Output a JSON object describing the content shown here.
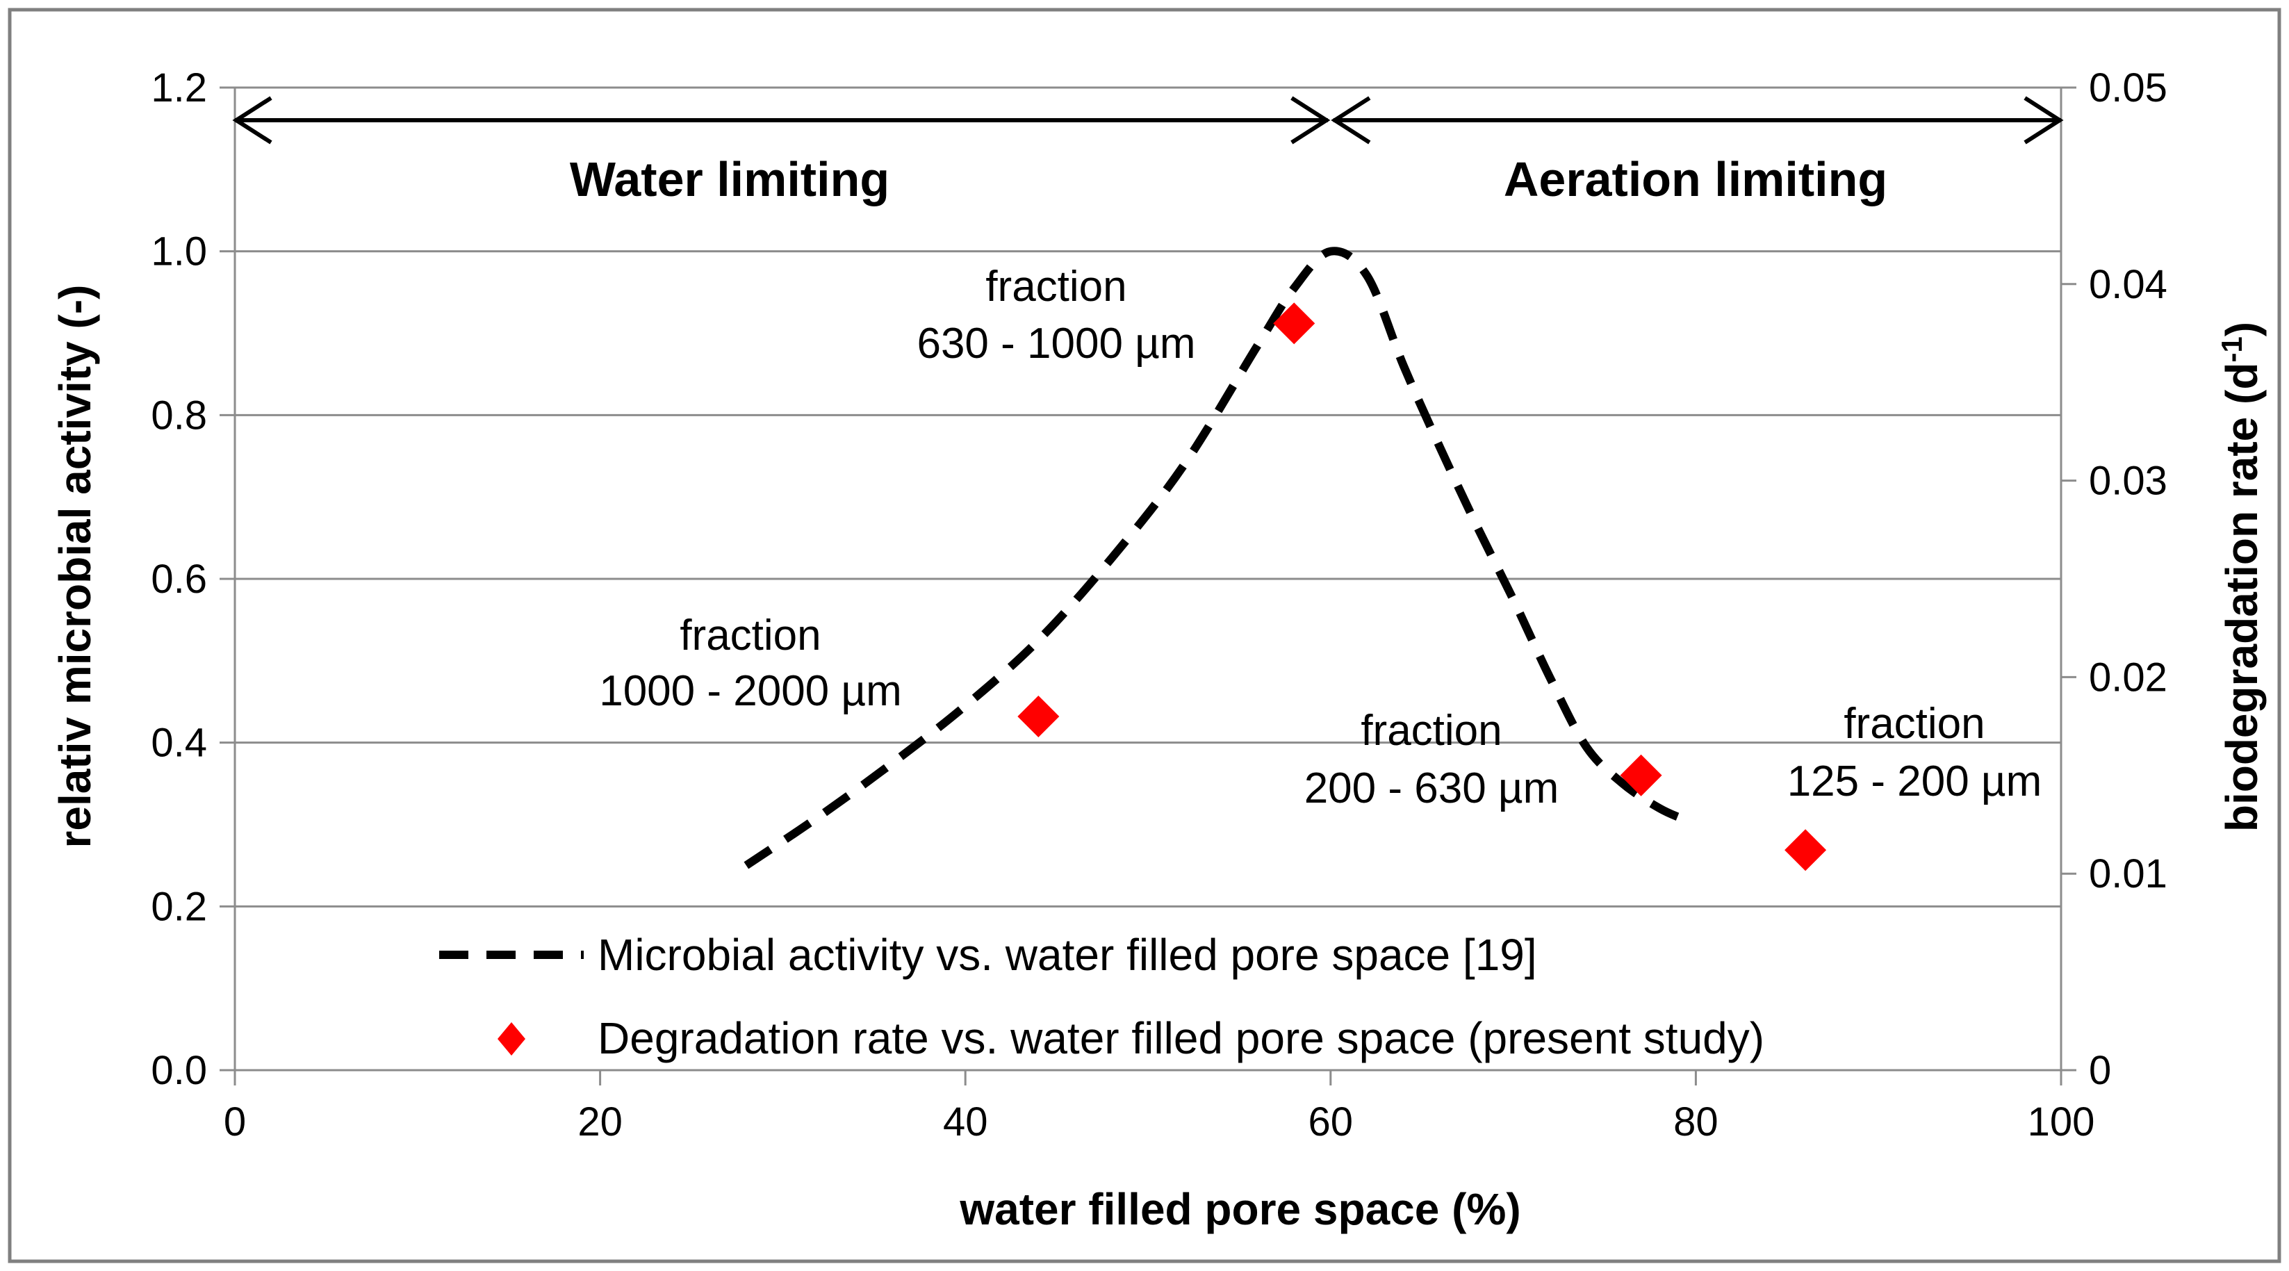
{
  "chart_data": {
    "type": "line",
    "title": "",
    "xlabel": "water filled pore space (%)",
    "ylabel": "relativ microbial activity (-)",
    "y2label_main": "biodegradation rate (d",
    "y2label_sup": "-1",
    "y2label_close": ")",
    "xlim": [
      0,
      100
    ],
    "ylim": [
      0,
      1.2
    ],
    "y2lim": [
      0,
      0.05
    ],
    "x_ticks": [
      "0",
      "20",
      "40",
      "60",
      "80",
      "100"
    ],
    "y_ticks": [
      "0.0",
      "0.2",
      "0.4",
      "0.6",
      "0.8",
      "1.0",
      "1.2"
    ],
    "y2_ticks": [
      "0",
      "0.01",
      "0.02",
      "0.03",
      "0.04",
      "0.05"
    ],
    "grid": true,
    "legend_position": "bottom-center",
    "series": [
      {
        "name": "Microbial activity vs. water filled pore space [19]",
        "style": "dashed",
        "color": "#000000",
        "axis": "left",
        "x": [
          28,
          32,
          36,
          40,
          44,
          48,
          52,
          56,
          58,
          60,
          62,
          64,
          66,
          68,
          70,
          72,
          74,
          76,
          78,
          79.5
        ],
        "y": [
          0.25,
          0.31,
          0.375,
          0.445,
          0.525,
          0.625,
          0.74,
          0.885,
          0.955,
          1.0,
          0.97,
          0.86,
          0.76,
          0.665,
          0.575,
          0.48,
          0.395,
          0.35,
          0.32,
          0.305
        ]
      },
      {
        "name": "Degradation rate vs. water filled pore space (present study)",
        "style": "marker-diamond",
        "color": "#ff0000",
        "axis": "right",
        "x": [
          44,
          58,
          77,
          86
        ],
        "y": [
          0.018,
          0.038,
          0.015,
          0.0112
        ]
      }
    ],
    "annotations": [
      {
        "text": "Water limiting",
        "kind": "region"
      },
      {
        "text": "Aeration limiting",
        "kind": "region"
      },
      {
        "line1": "fraction",
        "line2": "630 - 1000 µm"
      },
      {
        "line1": "fraction",
        "line2": "1000 - 2000 µm"
      },
      {
        "line1": "fraction",
        "line2": "200 - 630 µm"
      },
      {
        "line1": "fraction",
        "line2": "125 - 200 µm"
      }
    ]
  }
}
